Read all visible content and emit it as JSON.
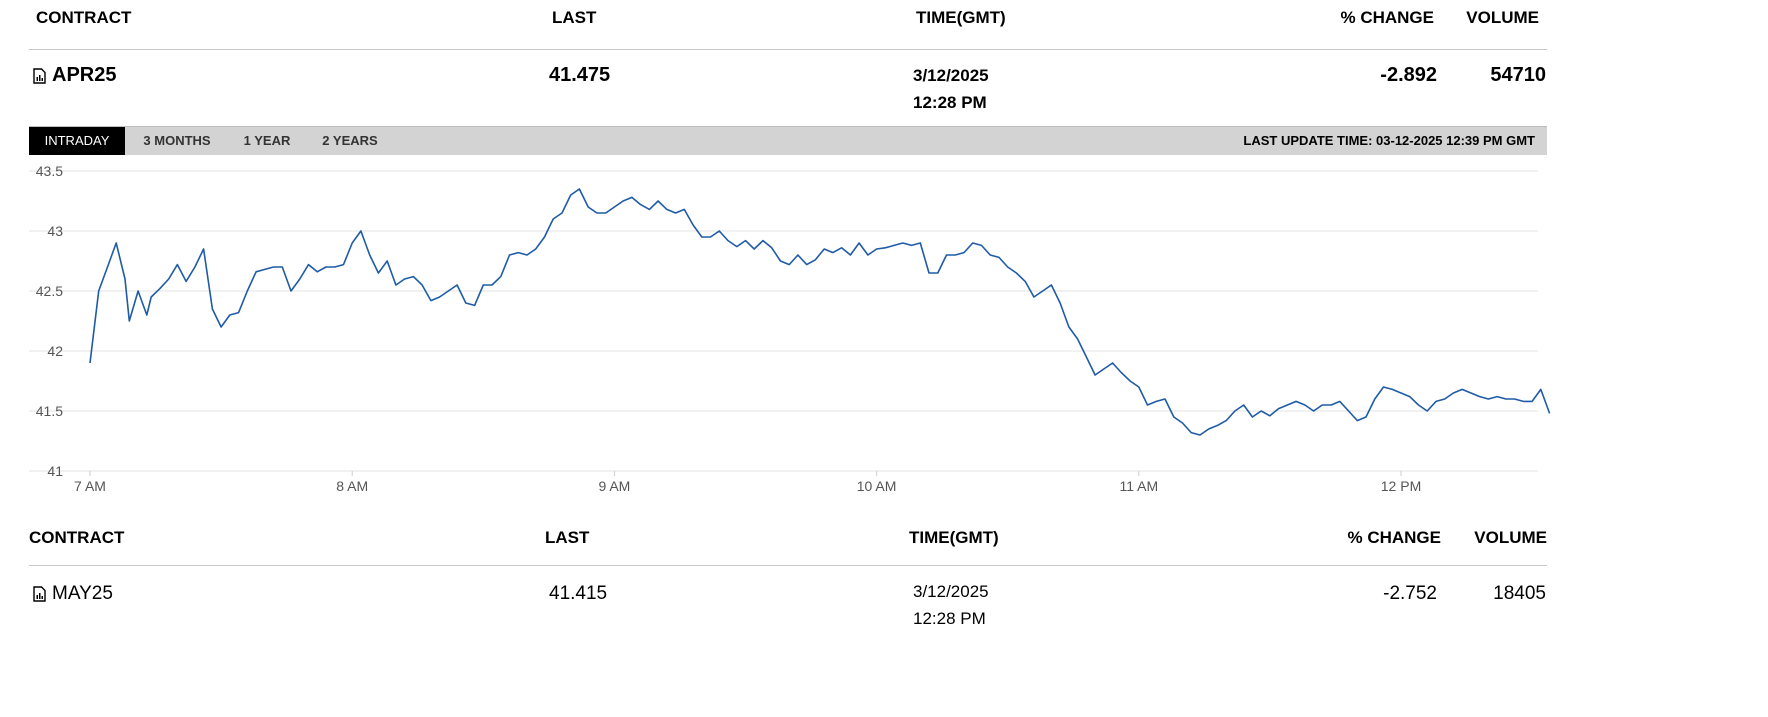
{
  "columns": {
    "contract": "CONTRACT",
    "last": "LAST",
    "time": "TIME(GMT)",
    "pct_change": "% CHANGE",
    "volume": "VOLUME"
  },
  "primary": {
    "contract": "APR25",
    "last": "41.475",
    "date": "3/12/2025",
    "time": "12:28 PM",
    "pct_change": "-2.892",
    "volume": "54710",
    "icon": "chart-document-icon"
  },
  "tabs": [
    {
      "label": "INTRADAY",
      "active": true
    },
    {
      "label": "3 MONTHS",
      "active": false
    },
    {
      "label": "1 YEAR",
      "active": false
    },
    {
      "label": "2 YEARS",
      "active": false
    }
  ],
  "last_update": "LAST UPDATE TIME: 03-12-2025 12:39 PM GMT",
  "secondary": {
    "contract": "MAY25",
    "last": "41.415",
    "date": "3/12/2025",
    "time": "12:28 PM",
    "pct_change": "-2.752",
    "volume": "18405",
    "icon": "chart-document-icon"
  },
  "chart_data": {
    "type": "line",
    "line_color": "#1f5ba6",
    "grid": true,
    "ylim": [
      41,
      43.5
    ],
    "yticks": [
      "43.5",
      "43",
      "42.5",
      "42",
      "41.5",
      "41"
    ],
    "xticks": [
      {
        "label": "7 AM",
        "hour": 7
      },
      {
        "label": "8 AM",
        "hour": 8
      },
      {
        "label": "9 AM",
        "hour": 9
      },
      {
        "label": "10 AM",
        "hour": 10
      },
      {
        "label": "11 AM",
        "hour": 11
      },
      {
        "label": "12 PM",
        "hour": 12
      }
    ],
    "series": [
      {
        "x": [
          "07:00",
          "07:02",
          "07:04",
          "07:06",
          "07:08",
          "07:09",
          "07:11",
          "07:13",
          "07:14",
          "07:16",
          "07:18",
          "07:20",
          "07:22",
          "07:24",
          "07:26",
          "07:28",
          "07:30",
          "07:32",
          "07:34",
          "07:36",
          "07:38",
          "07:40",
          "07:42",
          "07:44",
          "07:46",
          "07:48",
          "07:50",
          "07:52",
          "07:54",
          "07:56",
          "07:58",
          "08:00",
          "08:02",
          "08:04",
          "08:06",
          "08:08",
          "08:10",
          "08:12",
          "08:14",
          "08:16",
          "08:18",
          "08:20",
          "08:22",
          "08:24",
          "08:26",
          "08:28",
          "08:30",
          "08:32",
          "08:34",
          "08:36",
          "08:38",
          "08:40",
          "08:42",
          "08:44",
          "08:46",
          "08:48",
          "08:50",
          "08:52",
          "08:54",
          "08:56",
          "08:58",
          "09:00",
          "09:02",
          "09:04",
          "09:06",
          "09:08",
          "09:10",
          "09:12",
          "09:14",
          "09:16",
          "09:18",
          "09:20",
          "09:22",
          "09:24",
          "09:26",
          "09:28",
          "09:30",
          "09:32",
          "09:34",
          "09:36",
          "09:38",
          "09:40",
          "09:42",
          "09:44",
          "09:46",
          "09:48",
          "09:50",
          "09:52",
          "09:54",
          "09:56",
          "09:58",
          "10:00",
          "10:02",
          "10:04",
          "10:06",
          "10:08",
          "10:10",
          "10:12",
          "10:14",
          "10:16",
          "10:18",
          "10:20",
          "10:22",
          "10:24",
          "10:26",
          "10:28",
          "10:30",
          "10:32",
          "10:34",
          "10:36",
          "10:38",
          "10:40",
          "10:42",
          "10:44",
          "10:46",
          "10:48",
          "10:50",
          "10:52",
          "10:54",
          "10:56",
          "10:58",
          "11:00",
          "11:02",
          "11:04",
          "11:06",
          "11:08",
          "11:10",
          "11:12",
          "11:14",
          "11:16",
          "11:18",
          "11:20",
          "11:22",
          "11:24",
          "11:26",
          "11:28",
          "11:30",
          "11:32",
          "11:34",
          "11:36",
          "11:38",
          "11:40",
          "11:42",
          "11:44",
          "11:46",
          "11:48",
          "11:50",
          "11:52",
          "11:54",
          "11:56",
          "11:58",
          "12:00",
          "12:02",
          "12:04",
          "12:06",
          "12:08",
          "12:10",
          "12:12",
          "12:14",
          "12:16",
          "12:18",
          "12:20",
          "12:22",
          "12:24",
          "12:26",
          "12:28",
          "12:30",
          "12:32",
          "12:34"
        ],
        "y": [
          41.9,
          42.5,
          42.7,
          42.9,
          42.6,
          42.25,
          42.5,
          42.3,
          42.45,
          42.52,
          42.6,
          42.72,
          42.58,
          42.7,
          42.85,
          42.35,
          42.2,
          42.3,
          42.32,
          42.5,
          42.66,
          42.68,
          42.7,
          42.7,
          42.5,
          42.6,
          42.72,
          42.66,
          42.7,
          42.7,
          42.72,
          42.9,
          43.0,
          42.8,
          42.65,
          42.75,
          42.55,
          42.6,
          42.62,
          42.55,
          42.42,
          42.45,
          42.5,
          42.55,
          42.4,
          42.38,
          42.55,
          42.55,
          42.62,
          42.8,
          42.82,
          42.8,
          42.85,
          42.95,
          43.1,
          43.15,
          43.3,
          43.35,
          43.2,
          43.15,
          43.15,
          43.2,
          43.25,
          43.28,
          43.22,
          43.18,
          43.25,
          43.18,
          43.15,
          43.18,
          43.05,
          42.95,
          42.95,
          43.0,
          42.92,
          42.87,
          42.92,
          42.85,
          42.92,
          42.86,
          42.75,
          42.72,
          42.8,
          42.72,
          42.76,
          42.85,
          42.82,
          42.86,
          42.8,
          42.9,
          42.8,
          42.85,
          42.86,
          42.88,
          42.9,
          42.88,
          42.9,
          42.65,
          42.65,
          42.8,
          42.8,
          42.82,
          42.9,
          42.88,
          42.8,
          42.78,
          42.7,
          42.65,
          42.58,
          42.45,
          42.5,
          42.55,
          42.4,
          42.2,
          42.1,
          41.95,
          41.8,
          41.85,
          41.9,
          41.82,
          41.75,
          41.7,
          41.55,
          41.58,
          41.6,
          41.45,
          41.4,
          41.32,
          41.3,
          41.35,
          41.38,
          41.42,
          41.5,
          41.55,
          41.45,
          41.5,
          41.46,
          41.52,
          41.55,
          41.58,
          41.55,
          41.5,
          41.55,
          41.55,
          41.58,
          41.5,
          41.42,
          41.45,
          41.6,
          41.7,
          41.68,
          41.65,
          41.62,
          41.55,
          41.5,
          41.58,
          41.6,
          41.65,
          41.68,
          41.65,
          41.62,
          41.6,
          41.62,
          41.6,
          41.6,
          41.58,
          41.58,
          41.68,
          41.48
        ]
      }
    ]
  }
}
